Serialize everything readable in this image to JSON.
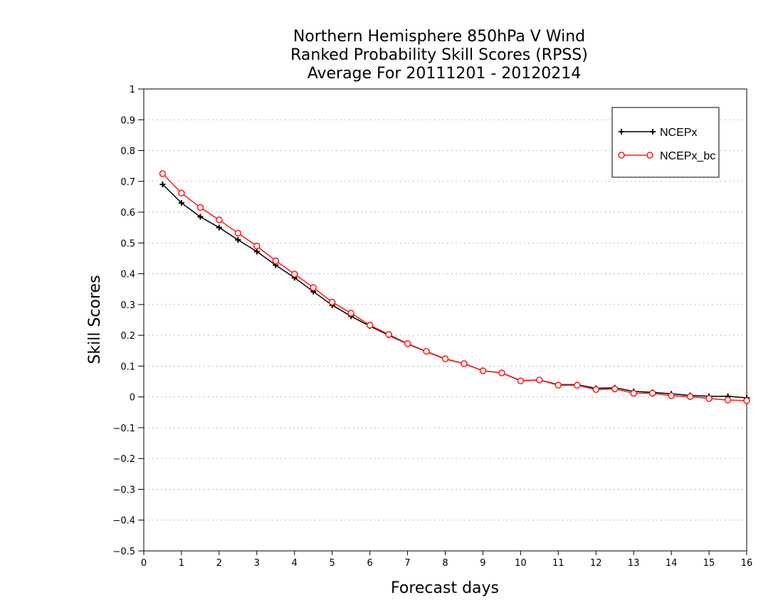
{
  "chart_data": {
    "type": "line",
    "title": [
      "Northern Hemisphere 850hPa V Wind",
      "Ranked Probability Skill Scores (RPSS)",
      "Average For 20111201 - 20120214"
    ],
    "xlabel": "Forecast days",
    "ylabel": "Skill Scores",
    "xlim": [
      0,
      16
    ],
    "ylim": [
      -0.5,
      1
    ],
    "x_ticks": [
      "0",
      "1",
      "2",
      "3",
      "4",
      "5",
      "6",
      "7",
      "8",
      "9",
      "10",
      "11",
      "12",
      "13",
      "14",
      "15",
      "16"
    ],
    "y_ticks": [
      "1",
      "0.9",
      "0.8",
      "0.7",
      "0.6",
      "0.5",
      "0.4",
      "0.3",
      "0.2",
      "0.1",
      "0",
      "−0.1",
      "−0.2",
      "−0.3",
      "−0.4",
      "−0.5"
    ],
    "grid": true,
    "legend_position": "top-right",
    "x": [
      0.5,
      1,
      1.5,
      2,
      2.5,
      3,
      3.5,
      4,
      4.5,
      5,
      5.5,
      6,
      6.5,
      7,
      7.5,
      8,
      8.5,
      9,
      9.5,
      10,
      10.5,
      11,
      11.5,
      12,
      12.5,
      13,
      13.5,
      14,
      14.5,
      15,
      15.5,
      16
    ],
    "series": [
      {
        "name": "NCEPx",
        "color": "#000000",
        "marker": "plus",
        "values": [
          0.69,
          0.63,
          0.585,
          0.55,
          0.51,
          0.472,
          0.428,
          0.387,
          0.342,
          0.298,
          0.262,
          0.23,
          0.2,
          0.172,
          0.147,
          0.123,
          0.108,
          0.085,
          0.078,
          0.053,
          0.055,
          0.04,
          0.04,
          0.028,
          0.03,
          0.018,
          0.015,
          0.01,
          0.005,
          0.002,
          0.002,
          -0.003
        ]
      },
      {
        "name": "NCEPx_bc",
        "color": "#ff2020",
        "marker": "circle",
        "values": [
          0.725,
          0.662,
          0.615,
          0.575,
          0.532,
          0.49,
          0.442,
          0.399,
          0.355,
          0.308,
          0.272,
          0.233,
          0.203,
          0.173,
          0.148,
          0.124,
          0.108,
          0.085,
          0.078,
          0.052,
          0.055,
          0.038,
          0.038,
          0.024,
          0.026,
          0.012,
          0.012,
          0.004,
          0.001,
          -0.005,
          -0.01,
          -0.012
        ]
      }
    ]
  }
}
